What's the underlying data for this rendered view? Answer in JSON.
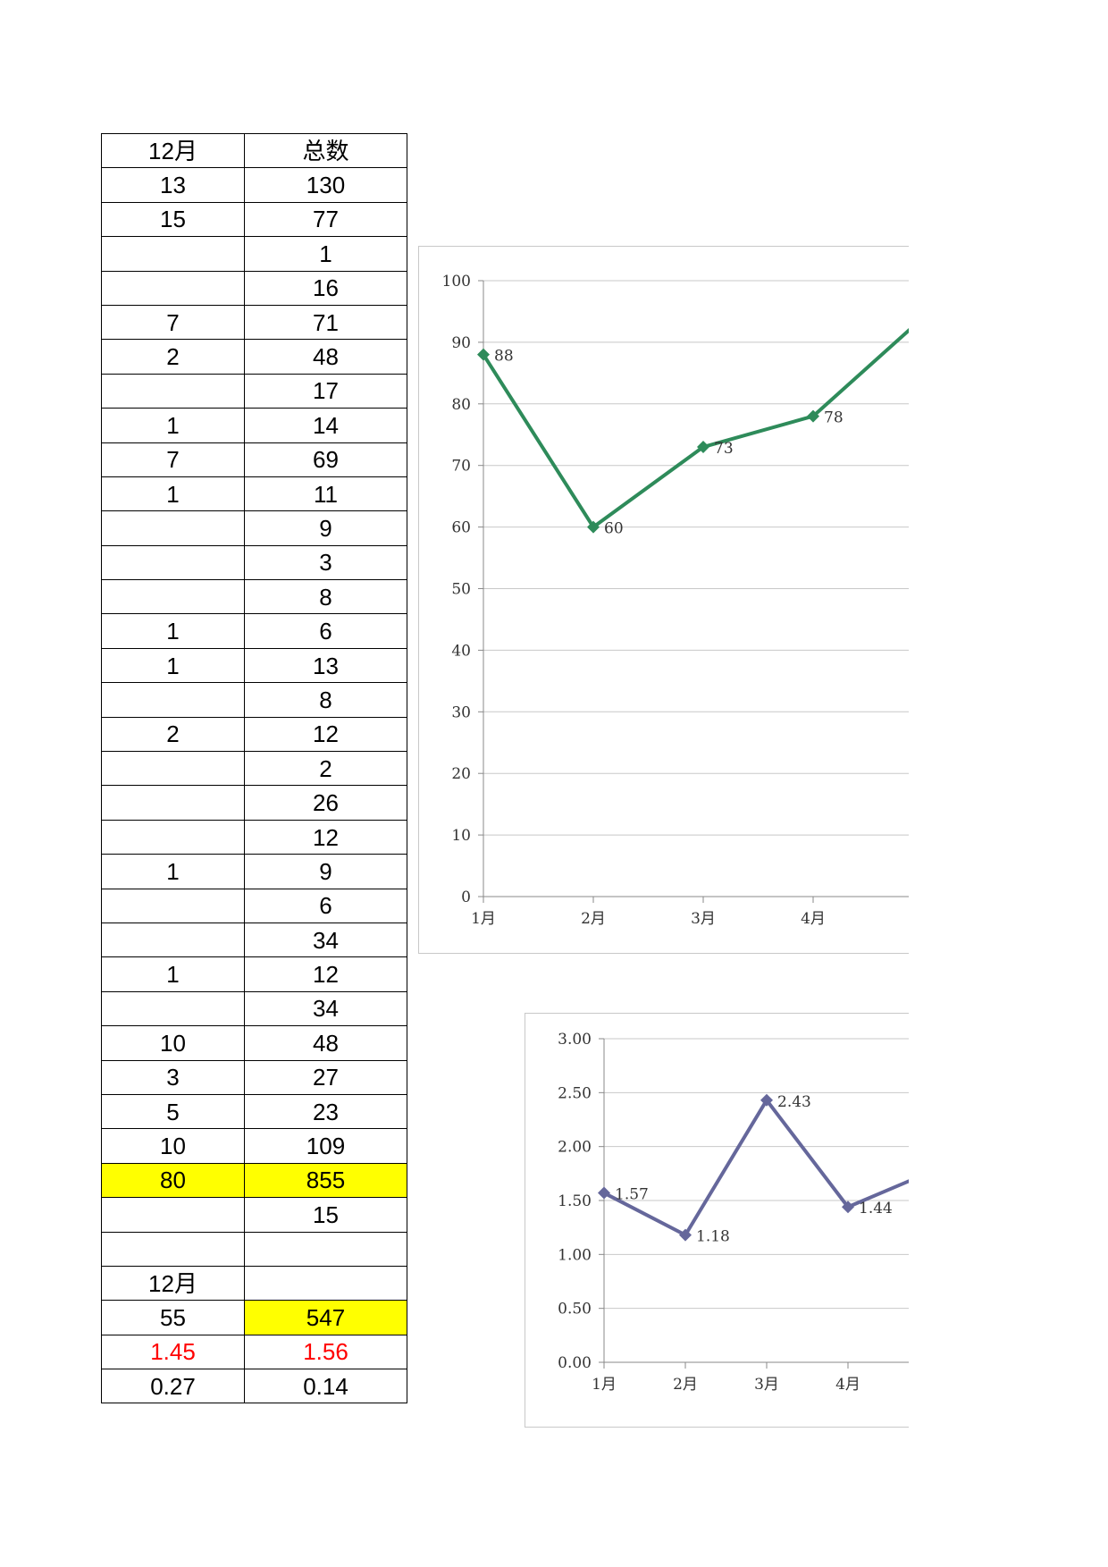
{
  "table": {
    "header": [
      "12月",
      "总数"
    ],
    "rows": [
      {
        "c1": "13",
        "c2": "130"
      },
      {
        "c1": "15",
        "c2": "77"
      },
      {
        "c1": "",
        "c2": "1"
      },
      {
        "c1": "",
        "c2": "16"
      },
      {
        "c1": "7",
        "c2": "71"
      },
      {
        "c1": "2",
        "c2": "48"
      },
      {
        "c1": "",
        "c2": "17"
      },
      {
        "c1": "1",
        "c2": "14"
      },
      {
        "c1": "7",
        "c2": "69"
      },
      {
        "c1": "1",
        "c2": "11"
      },
      {
        "c1": "",
        "c2": "9"
      },
      {
        "c1": "",
        "c2": "3"
      },
      {
        "c1": "",
        "c2": "8"
      },
      {
        "c1": "1",
        "c2": "6"
      },
      {
        "c1": "1",
        "c2": "13"
      },
      {
        "c1": "",
        "c2": "8"
      },
      {
        "c1": "2",
        "c2": "12"
      },
      {
        "c1": "",
        "c2": "2"
      },
      {
        "c1": "",
        "c2": "26"
      },
      {
        "c1": "",
        "c2": "12"
      },
      {
        "c1": "1",
        "c2": "9"
      },
      {
        "c1": "",
        "c2": "6"
      },
      {
        "c1": "",
        "c2": "34"
      },
      {
        "c1": "1",
        "c2": "12"
      },
      {
        "c1": "",
        "c2": "34"
      },
      {
        "c1": "10",
        "c2": "48"
      },
      {
        "c1": "3",
        "c2": "27"
      },
      {
        "c1": "5",
        "c2": "23"
      },
      {
        "c1": "10",
        "c2": "109"
      },
      {
        "c1": "80",
        "c2": "855",
        "hl1": true,
        "hl2": true
      },
      {
        "c1": "",
        "c2": "15"
      },
      {
        "c1": "",
        "c2": ""
      },
      {
        "c1": "12月",
        "c2": ""
      },
      {
        "c1": "55",
        "c2": "547",
        "hl2": true
      },
      {
        "c1": "1.45",
        "c2": "1.56",
        "red": true
      },
      {
        "c1": "0.27",
        "c2": "0.14"
      }
    ]
  },
  "colors": {
    "highlight": "#ffff00",
    "red_text": "#ff0000",
    "chart1_line": "#2e8b5a",
    "chart2_line": "#65679b",
    "gridline": "#c8c8c8"
  },
  "chart_data": [
    {
      "type": "line",
      "categories": [
        "1月",
        "2月",
        "3月",
        "4月"
      ],
      "series": [
        {
          "values": [
            88,
            60,
            73,
            78
          ]
        }
      ],
      "data_labels": [
        "88",
        "60",
        "73",
        "78"
      ],
      "ylim": [
        0,
        100
      ],
      "yticks": [
        "0",
        "10",
        "20",
        "30",
        "40",
        "50",
        "60",
        "70",
        "80",
        "90",
        "100"
      ],
      "continuation_value": 86,
      "grid": true,
      "marker": "diamond",
      "color": "#2e8b5a"
    },
    {
      "type": "line",
      "categories": [
        "1月",
        "2月",
        "3月",
        "4月"
      ],
      "series": [
        {
          "values": [
            1.57,
            1.18,
            2.43,
            1.44
          ]
        }
      ],
      "data_labels": [
        "1.57",
        "1.18",
        "2.43",
        "1.44"
      ],
      "ylim": [
        0,
        3
      ],
      "yticks": [
        "0.00",
        "0.50",
        "1.00",
        "1.50",
        "2.00",
        "2.50",
        "3.00"
      ],
      "continuation_value": 1.6,
      "grid": true,
      "marker": "diamond",
      "color": "#65679b"
    }
  ]
}
